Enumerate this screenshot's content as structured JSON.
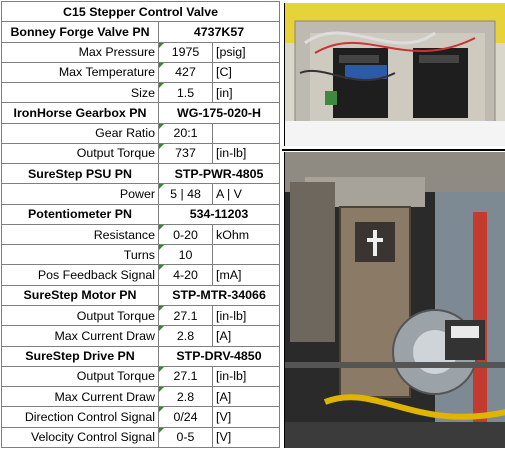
{
  "title": "C15 Stepper Control Valve",
  "rows": [
    {
      "label": "Bonney Forge Valve PN",
      "value": "4737K57",
      "unit": "",
      "kind": "header"
    },
    {
      "label": "Max Pressure",
      "value": "1975",
      "unit": "[psig]",
      "kind": "spec"
    },
    {
      "label": "Max Temperature",
      "value": "427",
      "unit": "[C]",
      "kind": "spec"
    },
    {
      "label": "Size",
      "value": "1.5",
      "unit": "[in]",
      "kind": "spec"
    },
    {
      "label": "IronHorse Gearbox PN",
      "value": "WG-175-020-H",
      "unit": "",
      "kind": "header"
    },
    {
      "label": "Gear Ratio",
      "value": "20:1",
      "unit": "",
      "kind": "spec"
    },
    {
      "label": "Output Torque",
      "value": "737",
      "unit": "[in-lb]",
      "kind": "spec"
    },
    {
      "label": "SureStep PSU PN",
      "value": "STP-PWR-4805",
      "unit": "",
      "kind": "header"
    },
    {
      "label": "Power",
      "value": "5 | 48",
      "unit": "A | V",
      "kind": "spec"
    },
    {
      "label": "Potentiometer PN",
      "value": "534-11203",
      "unit": "",
      "kind": "header"
    },
    {
      "label": "Resistance",
      "value": "0-20",
      "unit": "kOhm",
      "kind": "spec"
    },
    {
      "label": "Turns",
      "value": "10",
      "unit": "",
      "kind": "spec"
    },
    {
      "label": "Pos Feedback Signal",
      "value": "4-20",
      "unit": "[mA]",
      "kind": "spec"
    },
    {
      "label": "SureStep Motor PN",
      "value": "STP-MTR-34066",
      "unit": "",
      "kind": "header"
    },
    {
      "label": "Output Torque",
      "value": "27.1",
      "unit": "[in-lb]",
      "kind": "spec"
    },
    {
      "label": "Max Current Draw",
      "value": "2.8",
      "unit": "[A]",
      "kind": "spec"
    },
    {
      "label": "SureStep Drive PN",
      "value": "STP-DRV-4850",
      "unit": "",
      "kind": "header"
    },
    {
      "label": "Output Torque",
      "value": "27.1",
      "unit": "[in-lb]",
      "kind": "spec"
    },
    {
      "label": "Max Current Draw",
      "value": "2.8",
      "unit": "[A]",
      "kind": "spec"
    },
    {
      "label": "Direction Control Signal",
      "value": "0/24",
      "unit": "[V]",
      "kind": "spec"
    },
    {
      "label": "Velocity Control Signal",
      "value": "0-5",
      "unit": "[V]",
      "kind": "spec"
    }
  ],
  "images": {
    "top": "electronics-enclosure-photo",
    "bottom": "valve-actuator-assembly-photo"
  },
  "colors": {
    "grid": "#7f7f7f",
    "marker": "#2e8b2e"
  }
}
